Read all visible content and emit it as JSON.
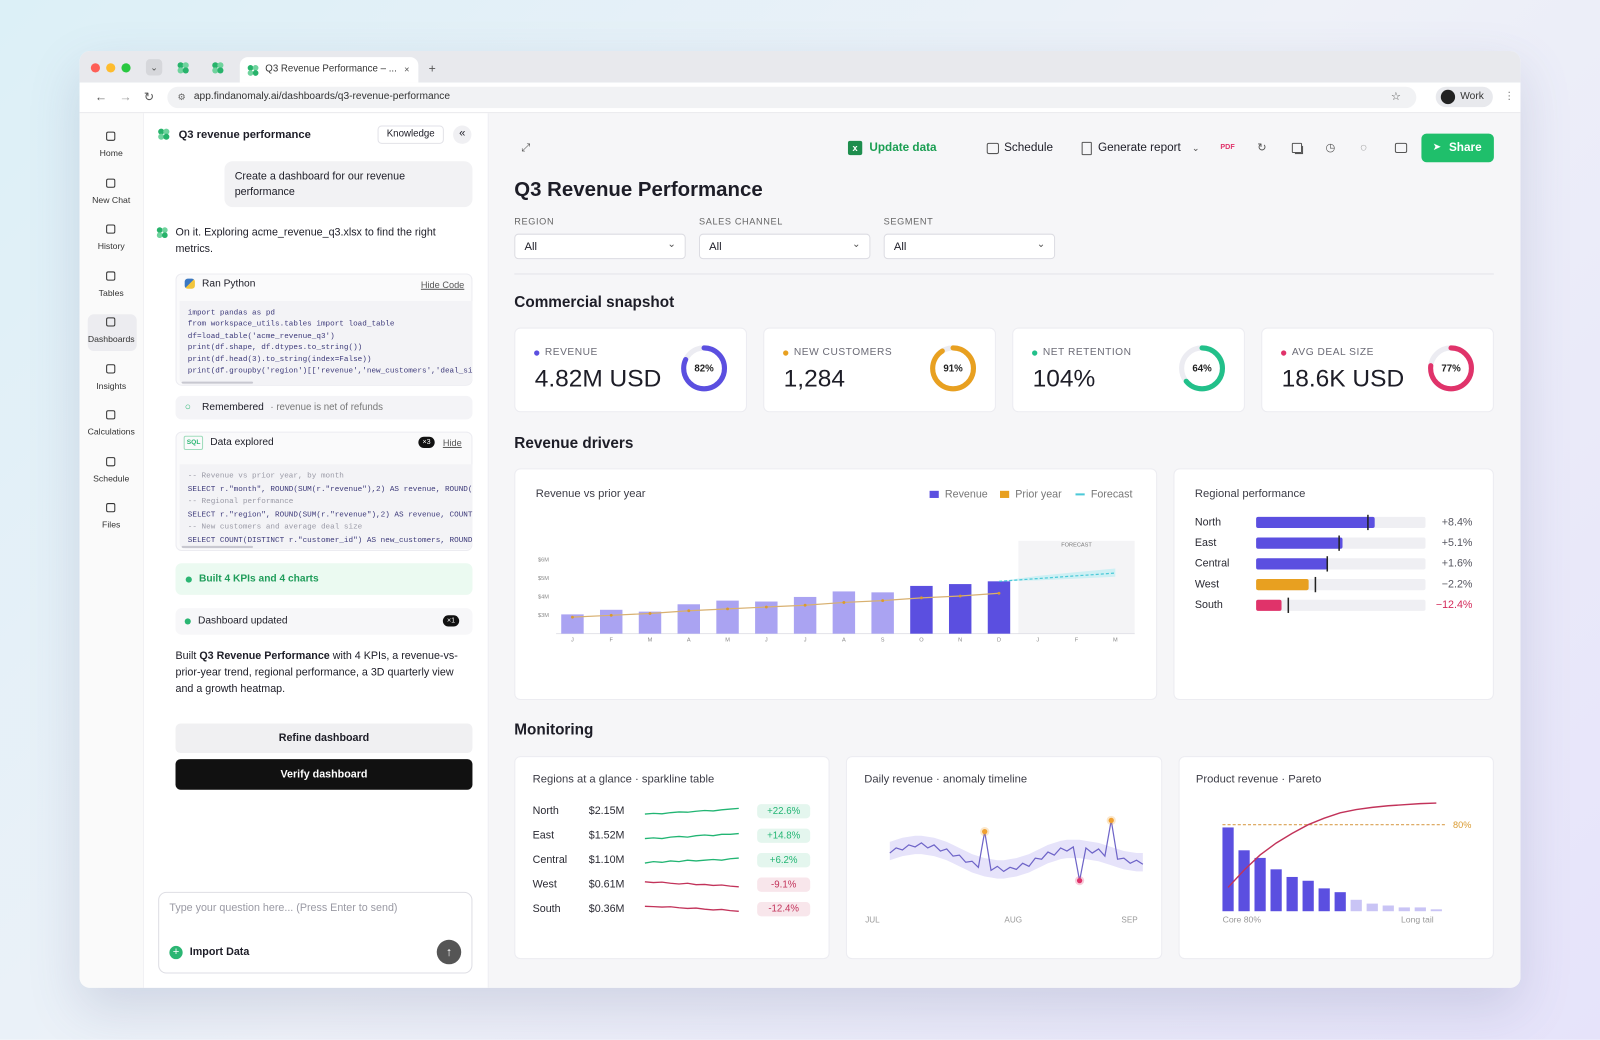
{
  "browser": {
    "tab_title": "Q3 Revenue Performance – ...",
    "url": "app.findanomaly.ai/dashboards/q3-revenue-performance",
    "profile": "Work"
  },
  "nav": [
    "Home",
    "New Chat",
    "History",
    "Tables",
    "Dashboards",
    "Insights",
    "Calculations",
    "Schedule",
    "Files"
  ],
  "chat": {
    "title": "Q3 revenue performance",
    "knowledge_button": "Knowledge",
    "user_message": "Create a dashboard for our revenue performance",
    "assistant_intro": "On it. Exploring acme_revenue_q3.xlsx to find the right metrics.",
    "python": {
      "label": "Ran Python",
      "toggle": "Hide Code",
      "code": [
        "import pandas as pd",
        "from workspace_utils.tables import load_table",
        "df=load_table('acme_revenue_q3')",
        "print(df.shape, df.dtypes.to_string())",
        "print(df.head(3).to_string(index=False))",
        "print(df.groupby('region')[['revenue','new_customers','deal_siz"
      ]
    },
    "remembered": {
      "label": "Remembered",
      "note": "· revenue is net of refunds"
    },
    "sql": {
      "badge": "SQL",
      "label": "Data explored",
      "count": "×3",
      "toggle": "Hide",
      "code": [
        "-- Revenue vs prior year, by month",
        "SELECT r.\"month\", ROUND(SUM(r.\"revenue\"),2) AS revenue, ROUND(S",
        "-- Regional performance",
        "SELECT r.\"region\", ROUND(SUM(r.\"revenue\"),2) AS revenue, COUNT(",
        "-- New customers and average deal size",
        "SELECT COUNT(DISTINCT r.\"customer_id\") AS new_customers, ROUND("
      ]
    },
    "built": "Built 4 KPIs and 4 charts",
    "updated": {
      "label": "Dashboard updated",
      "count": "×1"
    },
    "summary": {
      "before": "Built ",
      "bold": "Q3 Revenue Performance",
      "after": " with 4 KPIs, a revenue-vs-prior-year trend, regional performance, a 3D quarterly view and a growth heatmap."
    },
    "refine_button": "Refine dashboard",
    "verify_button": "Verify dashboard",
    "input_placeholder": "Type your question here... (Press Enter to send)",
    "import_button": "Import Data"
  },
  "dashboard": {
    "toolbar": {
      "update_data": "Update data",
      "schedule": "Schedule",
      "generate_report": "Generate report",
      "pdf": "PDF",
      "share": "Share"
    },
    "title": "Q3 Revenue Performance",
    "filters": [
      {
        "label": "REGION",
        "value": "All"
      },
      {
        "label": "SALES CHANNEL",
        "value": "All"
      },
      {
        "label": "SEGMENT",
        "value": "All"
      }
    ],
    "sections": {
      "snapshot": "Commercial snapshot",
      "drivers": "Revenue drivers",
      "monitoring": "Monitoring"
    },
    "kpis": [
      {
        "label": "REVENUE",
        "value": "4.82M USD",
        "ring": 82,
        "ring_label": "82%",
        "color": "#5b4fe0"
      },
      {
        "label": "NEW CUSTOMERS",
        "value": "1,284",
        "ring": 91,
        "ring_label": "91%",
        "color": "#e8a020"
      },
      {
        "label": "NET RETENTION",
        "value": "104%",
        "ring": 64,
        "ring_label": "64%",
        "color": "#22c08a"
      },
      {
        "label": "AVG DEAL SIZE",
        "value": "18.6K USD",
        "ring": 77,
        "ring_label": "77%",
        "color": "#e0336a"
      }
    ],
    "revenue_chart": {
      "type": "bar",
      "title": "Revenue vs prior year",
      "categories": [
        "J",
        "F",
        "M",
        "A",
        "M",
        "J",
        "J",
        "A",
        "S",
        "O",
        "N",
        "D",
        "J",
        "F",
        "M"
      ],
      "ylim": [
        2,
        6
      ],
      "yticks": [
        {
          "value": 3,
          "label": "$3M"
        },
        {
          "value": 4,
          "label": "$4M"
        },
        {
          "value": 5,
          "label": "$5M"
        },
        {
          "value": 6,
          "label": "$6M"
        }
      ],
      "series": [
        {
          "name": "Revenue",
          "color": "#5b4fe0",
          "values": [
            3.05,
            3.3,
            3.2,
            3.6,
            3.8,
            3.75,
            4.0,
            4.3,
            4.25,
            4.6,
            4.7,
            4.85,
            null,
            null,
            null
          ],
          "colors": [
            "#aaa3f2",
            "#aaa3f2",
            "#aaa3f2",
            "#aaa3f2",
            "#aaa3f2",
            "#aaa3f2",
            "#aaa3f2",
            "#aaa3f2",
            "#aaa3f2",
            "#5b4fe0",
            "#5b4fe0",
            "#5b4fe0",
            null,
            null,
            null
          ]
        },
        {
          "name": "Prior year",
          "color": "#e8a020",
          "values": [
            2.9,
            3.0,
            3.1,
            3.25,
            3.35,
            3.45,
            3.55,
            3.7,
            3.8,
            3.95,
            4.05,
            4.2,
            null,
            null,
            null
          ]
        },
        {
          "name": "Forecast",
          "color": "#4cc9d8",
          "values": [
            null,
            null,
            null,
            null,
            null,
            null,
            null,
            null,
            null,
            null,
            null,
            4.85,
            5.0,
            5.15,
            5.3
          ]
        }
      ],
      "forecast_band": {
        "color": "#bdeef3",
        "low": [
          null,
          null,
          null,
          null,
          null,
          null,
          null,
          null,
          null,
          null,
          null,
          4.85,
          4.9,
          5.0,
          5.1
        ],
        "high": [
          null,
          null,
          null,
          null,
          null,
          null,
          null,
          null,
          null,
          null,
          null,
          4.85,
          5.15,
          5.35,
          5.55
        ]
      },
      "forecast_label": "FORECAST"
    },
    "regional": {
      "type": "bar",
      "title": "Regional performance",
      "categories": [
        "North",
        "East",
        "Central",
        "West",
        "South"
      ],
      "values": [
        8.4,
        5.1,
        1.6,
        -2.2,
        -12.4
      ],
      "value_labels": [
        "+8.4%",
        "+5.1%",
        "+1.6%",
        "−2.2%",
        "−12.4%"
      ],
      "label_colors": [
        "#55555f",
        "#55555f",
        "#55555f",
        "#55555f",
        "#d42a5a"
      ],
      "xlim": [
        0,
        100
      ],
      "actual": [
        70,
        51,
        42,
        31,
        15
      ],
      "target": [
        66,
        49,
        42,
        35,
        19
      ],
      "colors": [
        "#5b4fe0",
        "#5b4fe0",
        "#5b4fe0",
        "#e8a020",
        "#e0336a"
      ]
    },
    "sparkline_table": {
      "type": "line",
      "title": "Regions at a glance · sparkline table",
      "spark_ylim": [
        0,
        10
      ],
      "rows": [
        {
          "name": "North",
          "value": "$2.15M",
          "change": 22.6,
          "change_label": "+22.6%",
          "color": "#22b573",
          "spark": [
            3,
            3.5,
            3.2,
            4,
            4.5,
            4.3,
            5,
            5.5,
            5.2,
            6,
            6.5,
            7
          ]
        },
        {
          "name": "East",
          "value": "$1.52M",
          "change": 14.8,
          "change_label": "+14.8%",
          "color": "#22b573",
          "spark": [
            3,
            3.5,
            3,
            4,
            4.5,
            4,
            5,
            5.5,
            5,
            6,
            6,
            6.5
          ]
        },
        {
          "name": "Central",
          "value": "$1.10M",
          "change": 6.2,
          "change_label": "+6.2%",
          "color": "#22b573",
          "spark": [
            3,
            4,
            3.5,
            4.5,
            4,
            5,
            4.5,
            5,
            5.5,
            5,
            6,
            6.5
          ]
        },
        {
          "name": "West",
          "value": "$0.61M",
          "change": -9.1,
          "change_label": "-9.1%",
          "color": "#c2335a",
          "spark": [
            7,
            6.5,
            6.8,
            6,
            5.5,
            6,
            5,
            5.2,
            4.5,
            4.8,
            4,
            3.5
          ]
        },
        {
          "name": "South",
          "value": "$0.36M",
          "change": -12.4,
          "change_label": "-12.4%",
          "color": "#c2335a",
          "spark": [
            7,
            6.8,
            6.5,
            6.7,
            6,
            5.5,
            5.8,
            5,
            4.5,
            4.8,
            4,
            3.5
          ]
        }
      ]
    },
    "anomaly": {
      "type": "line",
      "title": "Daily revenue · anomaly timeline",
      "x_labels": [
        "JUL",
        "AUG",
        "SEP"
      ],
      "ylim": [
        -40,
        40
      ],
      "color": "#6e64c8",
      "band_color": "#e6e3fa",
      "values": [
        4,
        9,
        7,
        12,
        10,
        14,
        9,
        12,
        6,
        8,
        1,
        2,
        -5,
        -4,
        -10,
        25,
        -13,
        -9,
        -14,
        -10,
        -12,
        -6,
        -9,
        -1,
        -2,
        5,
        2,
        9,
        6,
        10,
        -23,
        9,
        4,
        8,
        1,
        36,
        -2,
        -1,
        -6,
        -3,
        -7
      ],
      "expected_low": [
        -3,
        -1,
        1,
        2,
        3,
        3,
        2,
        1,
        -1,
        -3,
        -6,
        -9,
        -12,
        -15,
        -17,
        -19,
        -20,
        -21,
        -21,
        -20,
        -19,
        -17,
        -15,
        -12,
        -9,
        -6,
        -4,
        -2,
        -1,
        -1,
        -1,
        -2,
        -3,
        -4,
        -6,
        -8,
        -10,
        -12,
        -13,
        -14,
        -14
      ],
      "expected_high": [
        15,
        17,
        19,
        20,
        21,
        21,
        20,
        19,
        17,
        15,
        12,
        9,
        6,
        3,
        1,
        -1,
        -2,
        -3,
        -3,
        -2,
        -1,
        1,
        3,
        6,
        9,
        12,
        14,
        16,
        17,
        17,
        17,
        16,
        15,
        14,
        12,
        10,
        8,
        6,
        5,
        4,
        4
      ],
      "marker_colors": [
        null,
        null,
        null,
        null,
        null,
        null,
        null,
        null,
        null,
        null,
        null,
        null,
        null,
        null,
        null,
        "#f0a030",
        null,
        null,
        null,
        null,
        null,
        null,
        null,
        null,
        null,
        null,
        null,
        null,
        null,
        null,
        "#e0336a",
        null,
        null,
        null,
        null,
        "#f0a030",
        null,
        null,
        null,
        null,
        null
      ]
    },
    "pareto": {
      "type": "bar",
      "title": "Product revenue · Pareto",
      "ylim": [
        0,
        25
      ],
      "cumulative_ylim": [
        0,
        100
      ],
      "values": [
        22,
        16,
        14,
        11,
        9,
        8,
        6,
        5,
        3,
        2,
        1.5,
        1,
        1,
        0.5
      ],
      "cumulative": [
        22,
        38,
        52,
        63,
        72,
        80,
        86,
        91,
        94,
        96,
        97.5,
        98.5,
        99.5,
        100
      ],
      "colors": [
        "#5b4fe0",
        "#5b4fe0",
        "#5b4fe0",
        "#5b4fe0",
        "#5b4fe0",
        "#5b4fe0",
        "#5b4fe0",
        "#5b4fe0",
        "#c9c4f5",
        "#c9c4f5",
        "#c9c4f5",
        "#c9c4f5",
        "#c9c4f5",
        "#c9c4f5"
      ],
      "line_color": "#c2335a",
      "threshold": {
        "value": 80,
        "label": "80%"
      },
      "left_label": "Core 80%",
      "right_label": "Long tail"
    }
  }
}
